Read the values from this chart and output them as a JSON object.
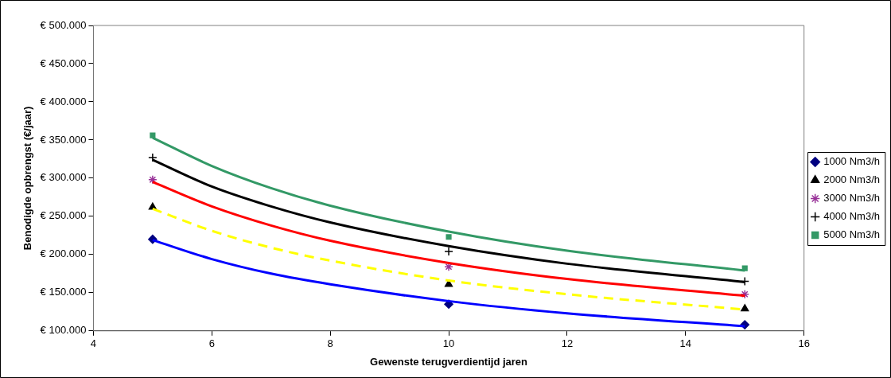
{
  "chart_data": {
    "type": "scatter",
    "xlabel": "Gewenste terugverdientijd jaren",
    "ylabel": "Benodigde opbrengst (€/jaar)",
    "xlim": [
      4,
      16
    ],
    "xticks": [
      4,
      6,
      8,
      10,
      12,
      14,
      16
    ],
    "ylim": [
      100000,
      500000
    ],
    "yticks": [
      {
        "value": 100000,
        "label": "€ 100.000"
      },
      {
        "value": 150000,
        "label": "€ 150.000"
      },
      {
        "value": 200000,
        "label": "€ 200.000"
      },
      {
        "value": 250000,
        "label": "€ 250.000"
      },
      {
        "value": 300000,
        "label": "€ 300.000"
      },
      {
        "value": 350000,
        "label": "€ 350.000"
      },
      {
        "value": 400000,
        "label": "€ 400.000"
      },
      {
        "value": 450000,
        "label": "€ 450.000"
      },
      {
        "value": 500000,
        "label": "€ 500.000"
      }
    ],
    "grid": false,
    "legend": "right",
    "series": [
      {
        "type": "line",
        "color": "#0000ff",
        "marker": "none",
        "line_style": "solid",
        "x": [
          5,
          6,
          7,
          8,
          10,
          12,
          15
        ],
        "values": [
          219000,
          194000,
          175000,
          161000,
          139000,
          123000,
          106000
        ]
      },
      {
        "type": "line",
        "color": "#ffff00",
        "marker": "none",
        "line_style": "dashed",
        "x": [
          5,
          6,
          7,
          8,
          10,
          12,
          15
        ],
        "values": [
          260000,
          231000,
          209000,
          192000,
          166000,
          148000,
          128000
        ]
      },
      {
        "type": "line",
        "color": "#ff0000",
        "marker": "none",
        "line_style": "solid",
        "x": [
          5,
          6,
          7,
          8,
          10,
          12,
          15
        ],
        "values": [
          295000,
          263000,
          238000,
          218000,
          189000,
          168000,
          146000
        ]
      },
      {
        "type": "line",
        "color": "#000000",
        "marker": "none",
        "line_style": "solid",
        "x": [
          5,
          6,
          7,
          8,
          10,
          12,
          15
        ],
        "values": [
          324000,
          289000,
          263000,
          242000,
          211000,
          188000,
          164000
        ]
      },
      {
        "type": "line",
        "color": "#339966",
        "marker": "none",
        "line_style": "solid",
        "x": [
          5,
          6,
          7,
          8,
          10,
          12,
          15
        ],
        "values": [
          353000,
          316000,
          287000,
          264000,
          230000,
          205000,
          179000
        ]
      },
      {
        "type": "scatter",
        "name": "1000 Nm3/h",
        "color": "#000080",
        "marker": "diamond",
        "x": [
          5,
          10,
          15
        ],
        "values": [
          220000,
          135000,
          108000
        ]
      },
      {
        "type": "scatter",
        "name": "2000 Nm3/h",
        "color": "#000000",
        "marker": "triangle",
        "x": [
          5,
          10,
          15
        ],
        "values": [
          262000,
          161000,
          129000
        ]
      },
      {
        "type": "scatter",
        "name": "3000 Nm3/h",
        "color": "#993399",
        "x": [
          5,
          10,
          15
        ],
        "values": [
          298000,
          184000,
          148000
        ]
      },
      {
        "type": "scatter",
        "name": "4000 Nm3/h",
        "color": "#000000",
        "marker": "cross",
        "x": [
          5,
          10,
          15
        ],
        "values": [
          327000,
          204000,
          165000
        ]
      },
      {
        "type": "scatter",
        "name": "5000 Nm3/h",
        "color": "#339966",
        "marker": "square",
        "x": [
          5,
          10,
          15
        ],
        "values": [
          356000,
          223000,
          182000
        ]
      }
    ]
  }
}
